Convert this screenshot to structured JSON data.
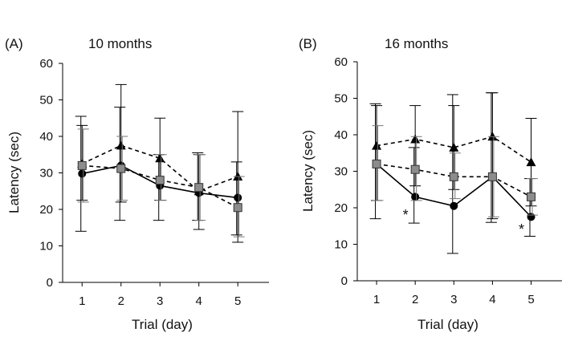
{
  "chart_data": [
    {
      "type": "line",
      "panel_label": "(A)",
      "title": "10 months",
      "xlabel": "Trial (day)",
      "ylabel": "Latency (sec)",
      "x": [
        1,
        2,
        3,
        4,
        5
      ],
      "x_tick_labels": [
        "1",
        "2",
        "3",
        "4",
        "5"
      ],
      "xlim": [
        0.5,
        5.8
      ],
      "ylim": [
        0,
        60
      ],
      "y_ticks": [
        0,
        10,
        20,
        30,
        40,
        50,
        60
      ],
      "y_tick_labels": [
        "0",
        "10",
        "20",
        "30",
        "40",
        "50",
        "60"
      ],
      "grid": false,
      "series": [
        {
          "marker": "circle",
          "line": "solid",
          "color": "#000000",
          "values": [
            29.8,
            32.0,
            26.5,
            24.5,
            23.2
          ],
          "err_low": [
            14.0,
            17.0,
            17.0,
            17.0,
            13.0
          ],
          "err_high": [
            45.5,
            48.0,
            35.0,
            35.5,
            33.0
          ]
        },
        {
          "marker": "triangle",
          "line": "dashed",
          "color": "#000000",
          "values": [
            32.5,
            37.5,
            34.0,
            25.0,
            29.0
          ],
          "err_low": [
            22.5,
            22.0,
            22.5,
            14.5,
            11.0
          ],
          "err_high": [
            43.0,
            54.2,
            45.0,
            35.0,
            46.8
          ]
        },
        {
          "marker": "square",
          "line": "dashed",
          "color": "#8c8c8c",
          "values": [
            32.0,
            31.2,
            28.0,
            26.0,
            20.5
          ],
          "err_low": [
            22.0,
            22.5,
            22.5,
            17.0,
            12.5
          ],
          "err_high": [
            42.0,
            40.0,
            35.0,
            35.0,
            29.0
          ]
        }
      ],
      "annotations": []
    },
    {
      "type": "line",
      "panel_label": "(B)",
      "title": "16 months",
      "xlabel": "Trial (day)",
      "ylabel": "Latency (sec)",
      "x": [
        1,
        2,
        3,
        4,
        5
      ],
      "x_tick_labels": [
        "1",
        "2",
        "3",
        "4",
        "5"
      ],
      "xlim": [
        0.5,
        5.8
      ],
      "ylim": [
        0,
        60
      ],
      "y_ticks": [
        0,
        10,
        20,
        30,
        40,
        50,
        60
      ],
      "y_tick_labels": [
        "0",
        "10",
        "20",
        "30",
        "40",
        "50",
        "60"
      ],
      "grid": false,
      "series": [
        {
          "marker": "circle",
          "line": "solid",
          "color": "#000000",
          "values": [
            32.0,
            23.0,
            20.5,
            28.5,
            17.5
          ],
          "err_low": [
            17.0,
            15.8,
            7.5,
            16.0,
            12.2
          ],
          "err_high": [
            48.5,
            36.5,
            51.0,
            51.5,
            28.0
          ]
        },
        {
          "marker": "triangle",
          "line": "dashed",
          "color": "#000000",
          "values": [
            37.0,
            38.8,
            36.5,
            39.5,
            32.5
          ],
          "err_low": [
            22.0,
            26.0,
            25.0,
            17.0,
            20.5
          ],
          "err_high": [
            48.0,
            48.0,
            48.0,
            51.5,
            44.5
          ]
        },
        {
          "marker": "square",
          "line": "dashed",
          "color": "#8c8c8c",
          "values": [
            32.0,
            30.5,
            28.5,
            28.5,
            23.0
          ],
          "err_low": [
            22.0,
            22.0,
            22.5,
            17.5,
            18.0
          ],
          "err_high": [
            42.5,
            39.5,
            35.0,
            39.5,
            28.0
          ]
        }
      ],
      "annotations": [
        {
          "text": "*",
          "x": 1.75,
          "y": 18.5
        },
        {
          "text": "*",
          "x": 4.75,
          "y": 14.5
        }
      ]
    }
  ]
}
